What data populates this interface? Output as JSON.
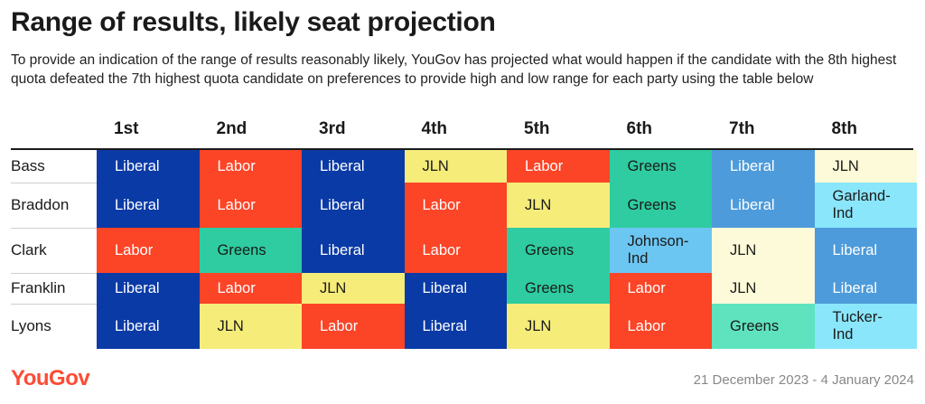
{
  "title": "Range of results, likely seat projection",
  "subtitle": "To provide an indication of the range of results reasonably likely, YouGov has projected what would happen if the candidate with the 8th highest quota defeated the 7th highest quota candidate on preferences to provide high and low range for each party using the table below",
  "footer": {
    "logo": "YouGov",
    "date": "21 December 2023 - 4 January 2024"
  },
  "colors": {
    "Liberal": "#0a3aa6",
    "Liberal-light": "#4d9bdb",
    "Labor": "#fc4427",
    "Labor-light": "#ff6a4d",
    "Greens": "#2ecca0",
    "Greens-light": "#5fe3bf",
    "JLN": "#f5ec7a",
    "JLN-light": "#fcfad8",
    "Independent-dark": "#6cc6f2",
    "Independent-light": "#8ae6fa",
    "logo": "#fd4b35"
  },
  "chart_data": {
    "type": "table",
    "columns": [
      "1st",
      "2nd",
      "3rd",
      "4th",
      "5th",
      "6th",
      "7th",
      "8th"
    ],
    "rows": [
      {
        "label": "Bass",
        "cells": [
          {
            "text": "Liberal",
            "color": "Liberal"
          },
          {
            "text": "Labor",
            "color": "Labor"
          },
          {
            "text": "Liberal",
            "color": "Liberal"
          },
          {
            "text": "JLN",
            "color": "JLN"
          },
          {
            "text": "Labor",
            "color": "Labor"
          },
          {
            "text": "Greens",
            "color": "Greens"
          },
          {
            "text": "Liberal",
            "color": "Liberal-light"
          },
          {
            "text": "JLN",
            "color": "JLN-light"
          }
        ]
      },
      {
        "label": "Braddon",
        "cells": [
          {
            "text": "Liberal",
            "color": "Liberal"
          },
          {
            "text": "Labor",
            "color": "Labor"
          },
          {
            "text": "Liberal",
            "color": "Liberal"
          },
          {
            "text": "Labor",
            "color": "Labor"
          },
          {
            "text": "JLN",
            "color": "JLN"
          },
          {
            "text": "Greens",
            "color": "Greens"
          },
          {
            "text": "Liberal",
            "color": "Liberal-light"
          },
          {
            "text": "Garland-\nInd",
            "color": "Independent-light"
          }
        ]
      },
      {
        "label": "Clark",
        "cells": [
          {
            "text": "Labor",
            "color": "Labor"
          },
          {
            "text": "Greens",
            "color": "Greens"
          },
          {
            "text": "Liberal",
            "color": "Liberal"
          },
          {
            "text": "Labor",
            "color": "Labor"
          },
          {
            "text": "Greens",
            "color": "Greens"
          },
          {
            "text": "Johnson-\nInd",
            "color": "Independent-dark"
          },
          {
            "text": "JLN",
            "color": "JLN-light"
          },
          {
            "text": "Liberal",
            "color": "Liberal-light"
          }
        ]
      },
      {
        "label": "Franklin",
        "cells": [
          {
            "text": "Liberal",
            "color": "Liberal"
          },
          {
            "text": "Labor",
            "color": "Labor"
          },
          {
            "text": "JLN",
            "color": "JLN"
          },
          {
            "text": "Liberal",
            "color": "Liberal"
          },
          {
            "text": "Greens",
            "color": "Greens"
          },
          {
            "text": "Labor",
            "color": "Labor"
          },
          {
            "text": "JLN",
            "color": "JLN-light"
          },
          {
            "text": "Liberal",
            "color": "Liberal-light"
          }
        ]
      },
      {
        "label": "Lyons",
        "cells": [
          {
            "text": "Liberal",
            "color": "Liberal"
          },
          {
            "text": "JLN",
            "color": "JLN"
          },
          {
            "text": "Labor",
            "color": "Labor"
          },
          {
            "text": "Liberal",
            "color": "Liberal"
          },
          {
            "text": "JLN",
            "color": "JLN"
          },
          {
            "text": "Labor",
            "color": "Labor"
          },
          {
            "text": "Greens",
            "color": "Greens-light"
          },
          {
            "text": "Tucker-\nInd",
            "color": "Independent-light"
          }
        ]
      }
    ]
  }
}
